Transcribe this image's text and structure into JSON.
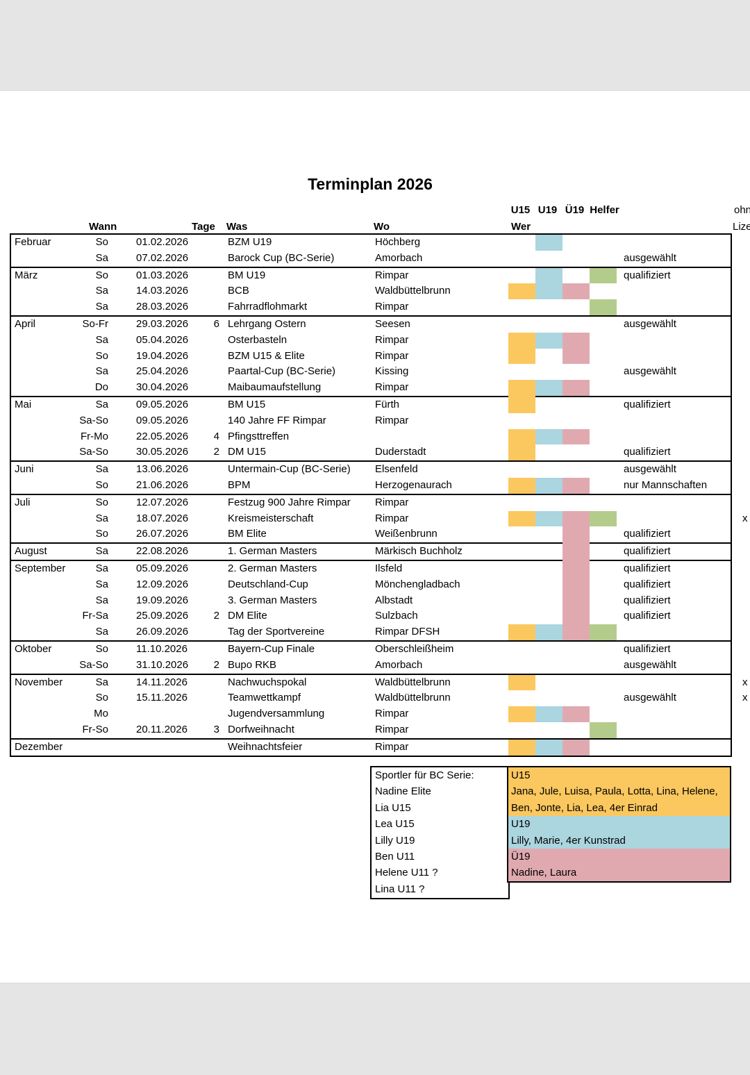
{
  "title": "Terminplan 2026",
  "colors": {
    "u15": "#FBC75F",
    "u19": "#ABD5DF",
    "ue19": "#E0A9B0",
    "helfer": "#B4CC8B",
    "page_gray": "#e5e5e5"
  },
  "group_headers": {
    "u15": "U15",
    "u19": "U19",
    "ue19": "Ü19",
    "helfer": "Helfer"
  },
  "column_headers": {
    "wann": "Wann",
    "tage": "Tage",
    "was": "Was",
    "wo": "Wo",
    "wer": "Wer"
  },
  "side_note": {
    "line1": "ohne",
    "line2": "Lizenz"
  },
  "months": [
    {
      "name": "Februar",
      "rows": [
        {
          "day": "So",
          "date": "01.02.2026",
          "tage": "",
          "event": "BZM U19",
          "where": "Höchberg",
          "cells": [
            "u19"
          ],
          "status": "",
          "mark": ""
        },
        {
          "day": "Sa",
          "date": "07.02.2026",
          "tage": "",
          "event": "Barock Cup (BC-Serie)",
          "where": "Amorbach",
          "cells": [],
          "status": "ausgewählt",
          "mark": ""
        }
      ]
    },
    {
      "name": "März",
      "rows": [
        {
          "day": "So",
          "date": "01.03.2026",
          "tage": "",
          "event": "BM U19",
          "where": "Rimpar",
          "cells": [
            "u19",
            "helfer"
          ],
          "status": "qualifiziert",
          "mark": ""
        },
        {
          "day": "Sa",
          "date": "14.03.2026",
          "tage": "",
          "event": "BCB",
          "where": "Waldbüttelbrunn",
          "cells": [
            "u15",
            "u19",
            "ue19"
          ],
          "status": "",
          "mark": ""
        },
        {
          "day": "Sa",
          "date": "28.03.2026",
          "tage": "",
          "event": "Fahrradflohmarkt",
          "where": "Rimpar",
          "cells": [
            "helfer"
          ],
          "status": "",
          "mark": ""
        }
      ]
    },
    {
      "name": "April",
      "rows": [
        {
          "day": "So-Fr",
          "date": "29.03.2026",
          "tage": "6",
          "event": "Lehrgang Ostern",
          "where": "Seesen",
          "cells": [],
          "status": "ausgewählt",
          "mark": ""
        },
        {
          "day": "Sa",
          "date": "05.04.2026",
          "tage": "",
          "event": "Osterbasteln",
          "where": "Rimpar",
          "cells": [
            "u15",
            "u19",
            "ue19"
          ],
          "status": "",
          "mark": ""
        },
        {
          "day": "So",
          "date": "19.04.2026",
          "tage": "",
          "event": "BZM U15 & Elite",
          "where": "Rimpar",
          "cells": [
            "u15",
            "ue19"
          ],
          "status": "",
          "mark": ""
        },
        {
          "day": "Sa",
          "date": "25.04.2026",
          "tage": "",
          "event": "Paartal-Cup (BC-Serie)",
          "where": "Kissing",
          "cells": [],
          "status": "ausgewählt",
          "mark": ""
        },
        {
          "day": "Do",
          "date": "30.04.2026",
          "tage": "",
          "event": "Maibaumaufstellung",
          "where": "Rimpar",
          "cells": [
            "u15",
            "u19",
            "ue19"
          ],
          "status": "",
          "mark": ""
        }
      ]
    },
    {
      "name": "Mai",
      "rows": [
        {
          "day": "Sa",
          "date": "09.05.2026",
          "tage": "",
          "event": "BM U15",
          "where": "Fürth",
          "cells": [
            "u15"
          ],
          "status": "qualifiziert",
          "mark": ""
        },
        {
          "day": "Sa-So",
          "date": "09.05.2026",
          "tage": "",
          "event": "140 Jahre FF Rimpar",
          "where": "Rimpar",
          "cells": [],
          "status": "",
          "mark": ""
        },
        {
          "day": "Fr-Mo",
          "date": "22.05.2026",
          "tage": "4",
          "event": "Pfingsttreffen",
          "where": "",
          "cells": [
            "u15",
            "u19",
            "ue19"
          ],
          "status": "",
          "mark": ""
        },
        {
          "day": "Sa-So",
          "date": "30.05.2026",
          "tage": "2",
          "event": "DM U15",
          "where": "Duderstadt",
          "cells": [
            "u15"
          ],
          "status": "qualifiziert",
          "mark": ""
        }
      ]
    },
    {
      "name": "Juni",
      "rows": [
        {
          "day": "Sa",
          "date": "13.06.2026",
          "tage": "",
          "event": "Untermain-Cup (BC-Serie)",
          "where": "Elsenfeld",
          "cells": [],
          "status": "ausgewählt",
          "mark": ""
        },
        {
          "day": "So",
          "date": "21.06.2026",
          "tage": "",
          "event": "BPM",
          "where": "Herzogenaurach",
          "cells": [
            "u15",
            "u19",
            "ue19"
          ],
          "status": "nur Mannschaften",
          "mark": ""
        }
      ]
    },
    {
      "name": "Juli",
      "rows": [
        {
          "day": "So",
          "date": "12.07.2026",
          "tage": "",
          "event": "Festzug 900 Jahre Rimpar",
          "where": "Rimpar",
          "cells": [],
          "status": "",
          "mark": ""
        },
        {
          "day": "Sa",
          "date": "18.07.2026",
          "tage": "",
          "event": "Kreismeisterschaft",
          "where": "Rimpar",
          "cells": [
            "u15",
            "u19",
            "ue19",
            "helfer"
          ],
          "status": "",
          "mark": "x"
        },
        {
          "day": "So",
          "date": "26.07.2026",
          "tage": "",
          "event": "BM Elite",
          "where": "Weißenbrunn",
          "cells": [
            "ue19"
          ],
          "status": "qualifiziert",
          "mark": ""
        }
      ]
    },
    {
      "name": "August",
      "rows": [
        {
          "day": "Sa",
          "date": "22.08.2026",
          "tage": "",
          "event": "1. German Masters",
          "where": "Märkisch Buchholz",
          "cells": [
            "ue19"
          ],
          "status": "qualifiziert",
          "mark": ""
        }
      ]
    },
    {
      "name": "September",
      "rows": [
        {
          "day": "Sa",
          "date": "05.09.2026",
          "tage": "",
          "event": "2. German Masters",
          "where": "Ilsfeld",
          "cells": [
            "ue19"
          ],
          "status": "qualifiziert",
          "mark": ""
        },
        {
          "day": "Sa",
          "date": "12.09.2026",
          "tage": "",
          "event": "Deutschland-Cup",
          "where": "Mönchengladbach",
          "cells": [
            "ue19"
          ],
          "status": "qualifiziert",
          "mark": ""
        },
        {
          "day": "Sa",
          "date": "19.09.2026",
          "tage": "",
          "event": "3. German Masters",
          "where": "Albstadt",
          "cells": [
            "ue19"
          ],
          "status": "qualifiziert",
          "mark": ""
        },
        {
          "day": "Fr-Sa",
          "date": "25.09.2026",
          "tage": "2",
          "event": "DM Elite",
          "where": "Sulzbach",
          "cells": [
            "ue19"
          ],
          "status": "qualifiziert",
          "mark": ""
        },
        {
          "day": "Sa",
          "date": "26.09.2026",
          "tage": "",
          "event": "Tag der Sportvereine",
          "where": "Rimpar DFSH",
          "cells": [
            "u15",
            "u19",
            "ue19",
            "helfer"
          ],
          "status": "",
          "mark": ""
        }
      ]
    },
    {
      "name": "Oktober",
      "rows": [
        {
          "day": "So",
          "date": "11.10.2026",
          "tage": "",
          "event": "Bayern-Cup Finale",
          "where": "Oberschleißheim",
          "cells": [],
          "status": "qualifiziert",
          "mark": ""
        },
        {
          "day": "Sa-So",
          "date": "31.10.2026",
          "tage": "2",
          "event": "Bupo RKB",
          "where": "Amorbach",
          "cells": [],
          "status": "ausgewählt",
          "mark": ""
        }
      ]
    },
    {
      "name": "November",
      "rows": [
        {
          "day": "Sa",
          "date": "14.11.2026",
          "tage": "",
          "event": "Nachwuchspokal",
          "where": "Waldbüttelbrunn",
          "cells": [
            "u15"
          ],
          "status": "",
          "mark": "x"
        },
        {
          "day": "So",
          "date": "15.11.2026",
          "tage": "",
          "event": "Teamwettkampf",
          "where": "Waldbüttelbrunn",
          "cells": [],
          "status": "ausgewählt",
          "mark": "x"
        },
        {
          "day": "Mo",
          "date": "",
          "tage": "",
          "event": "Jugendversammlung",
          "where": "Rimpar",
          "cells": [
            "u15",
            "u19",
            "ue19"
          ],
          "status": "",
          "mark": ""
        },
        {
          "day": "Fr-So",
          "date": "20.11.2026",
          "tage": "3",
          "event": "Dorfweihnacht",
          "where": "Rimpar",
          "cells": [
            "helfer"
          ],
          "status": "",
          "mark": ""
        }
      ]
    },
    {
      "name": "Dezember",
      "rows": [
        {
          "day": "",
          "date": "",
          "tage": "",
          "event": "Weihnachtsfeier",
          "where": "Rimpar",
          "cells": [
            "u15",
            "u19",
            "ue19"
          ],
          "status": "",
          "mark": ""
        }
      ]
    }
  ],
  "roster": {
    "lines": [
      "Sportler für BC Serie:",
      "Nadine Elite",
      "Lia U15",
      "Lea U15",
      "Lilly U19",
      "Ben U11",
      "Helene U11 ?",
      "Lina U11 ?"
    ]
  },
  "wer_legend": {
    "bands": [
      {
        "color": "u15",
        "lines": [
          "U15",
          "Jana, Jule, Luisa, Paula, Lotta, Lina, Helene,",
          "Ben, Jonte, Lia, Lea, 4er Einrad"
        ]
      },
      {
        "color": "u19",
        "lines": [
          "U19",
          "Lilly, Marie, 4er Kunstrad"
        ]
      },
      {
        "color": "ue19",
        "lines": [
          "Ü19",
          "Nadine, Laura"
        ]
      }
    ]
  }
}
